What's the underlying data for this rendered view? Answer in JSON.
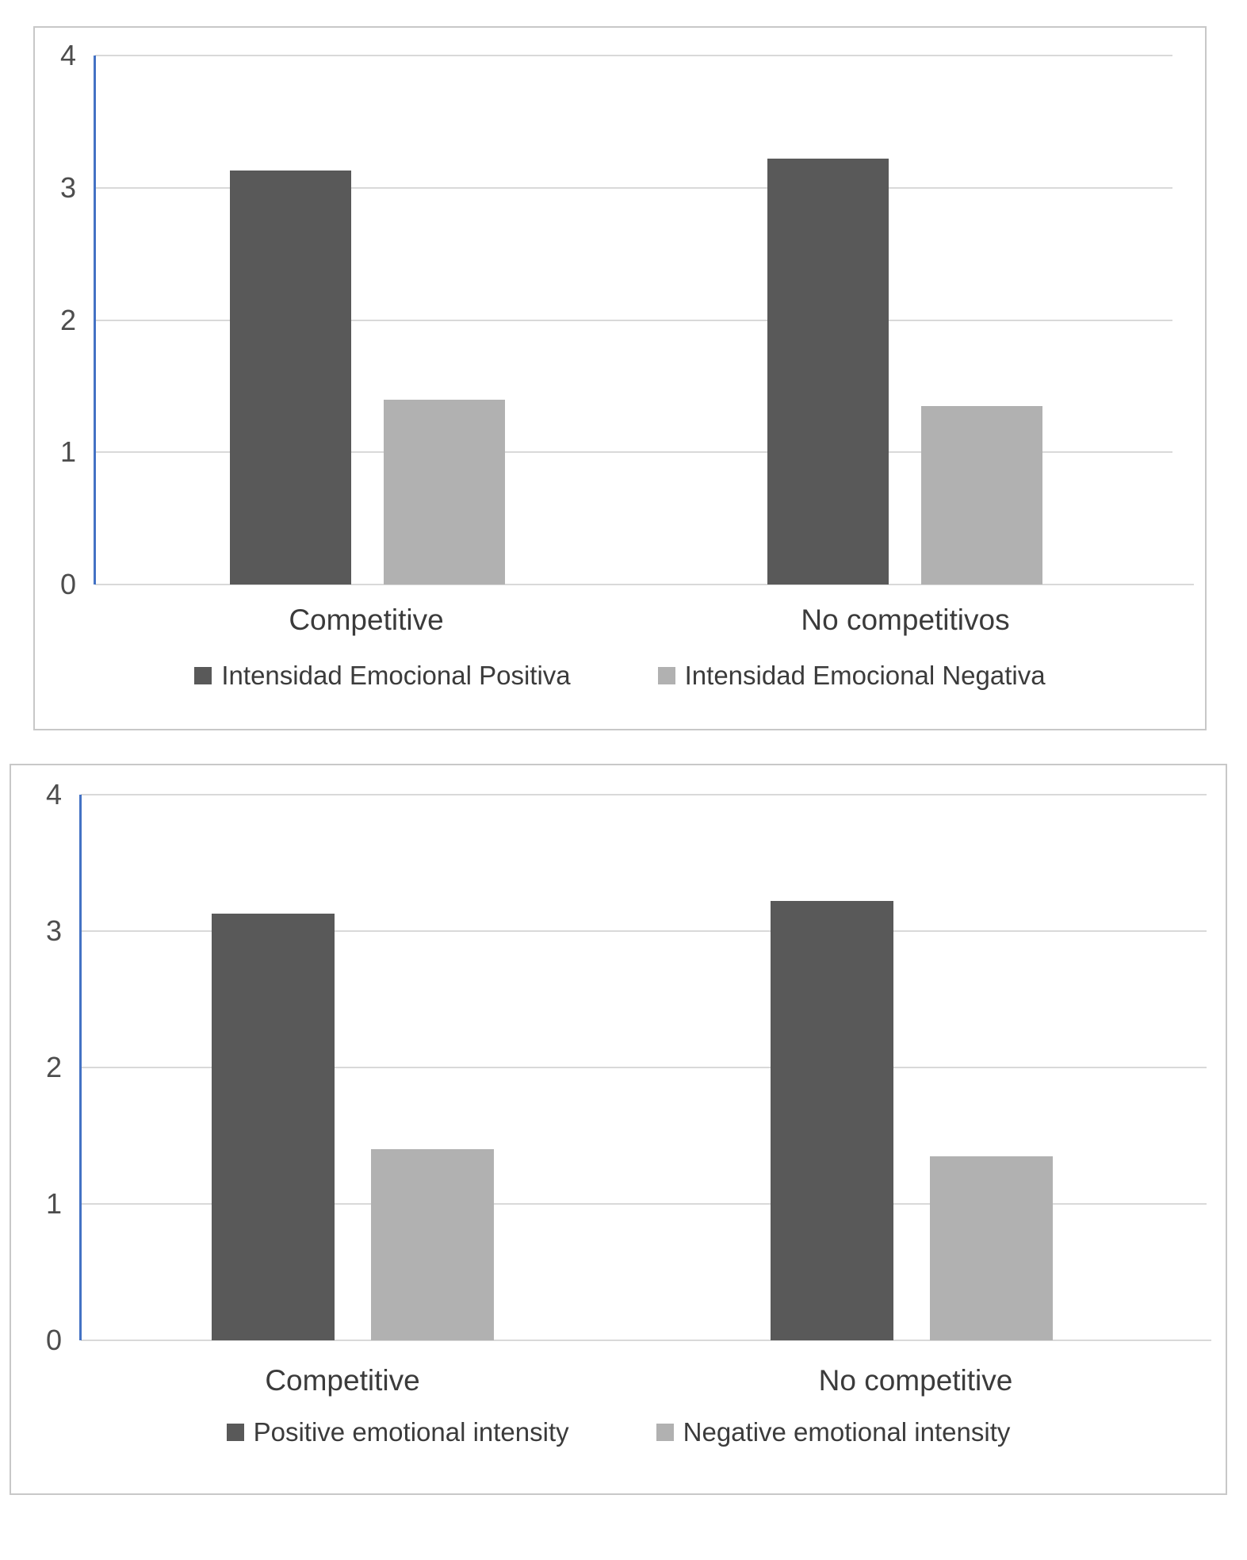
{
  "page": {
    "background": "#ffffff"
  },
  "chart_data": [
    {
      "type": "bar",
      "title": "",
      "categories": [
        "Competitive",
        "No competitivos"
      ],
      "series": [
        {
          "name": "Intensidad Emocional Positiva",
          "color": "#595959",
          "values": [
            3.13,
            3.22
          ]
        },
        {
          "name": "Intensidad Emocional Negativa",
          "color": "#b1b1b1",
          "values": [
            1.4,
            1.35
          ]
        }
      ],
      "ylim": [
        0,
        4
      ],
      "yticks": [
        0,
        1,
        2,
        3,
        4
      ],
      "grid": true,
      "legend_position": "bottom",
      "axis_color": "#4472c4",
      "gridline_color": "#d9d9d9",
      "tick_label_color": "#4d4d4d"
    },
    {
      "type": "bar",
      "title": "",
      "categories": [
        "Competitive",
        "No competitive"
      ],
      "series": [
        {
          "name": "Positive emotional intensity",
          "color": "#595959",
          "values": [
            3.13,
            3.22
          ]
        },
        {
          "name": "Negative emotional intensity",
          "color": "#b1b1b1",
          "values": [
            1.4,
            1.35
          ]
        }
      ],
      "ylim": [
        0,
        4
      ],
      "yticks": [
        0,
        1,
        2,
        3,
        4
      ],
      "grid": true,
      "legend_position": "bottom",
      "axis_color": "#4472c4",
      "gridline_color": "#d9d9d9",
      "tick_label_color": "#4d4d4d"
    }
  ]
}
